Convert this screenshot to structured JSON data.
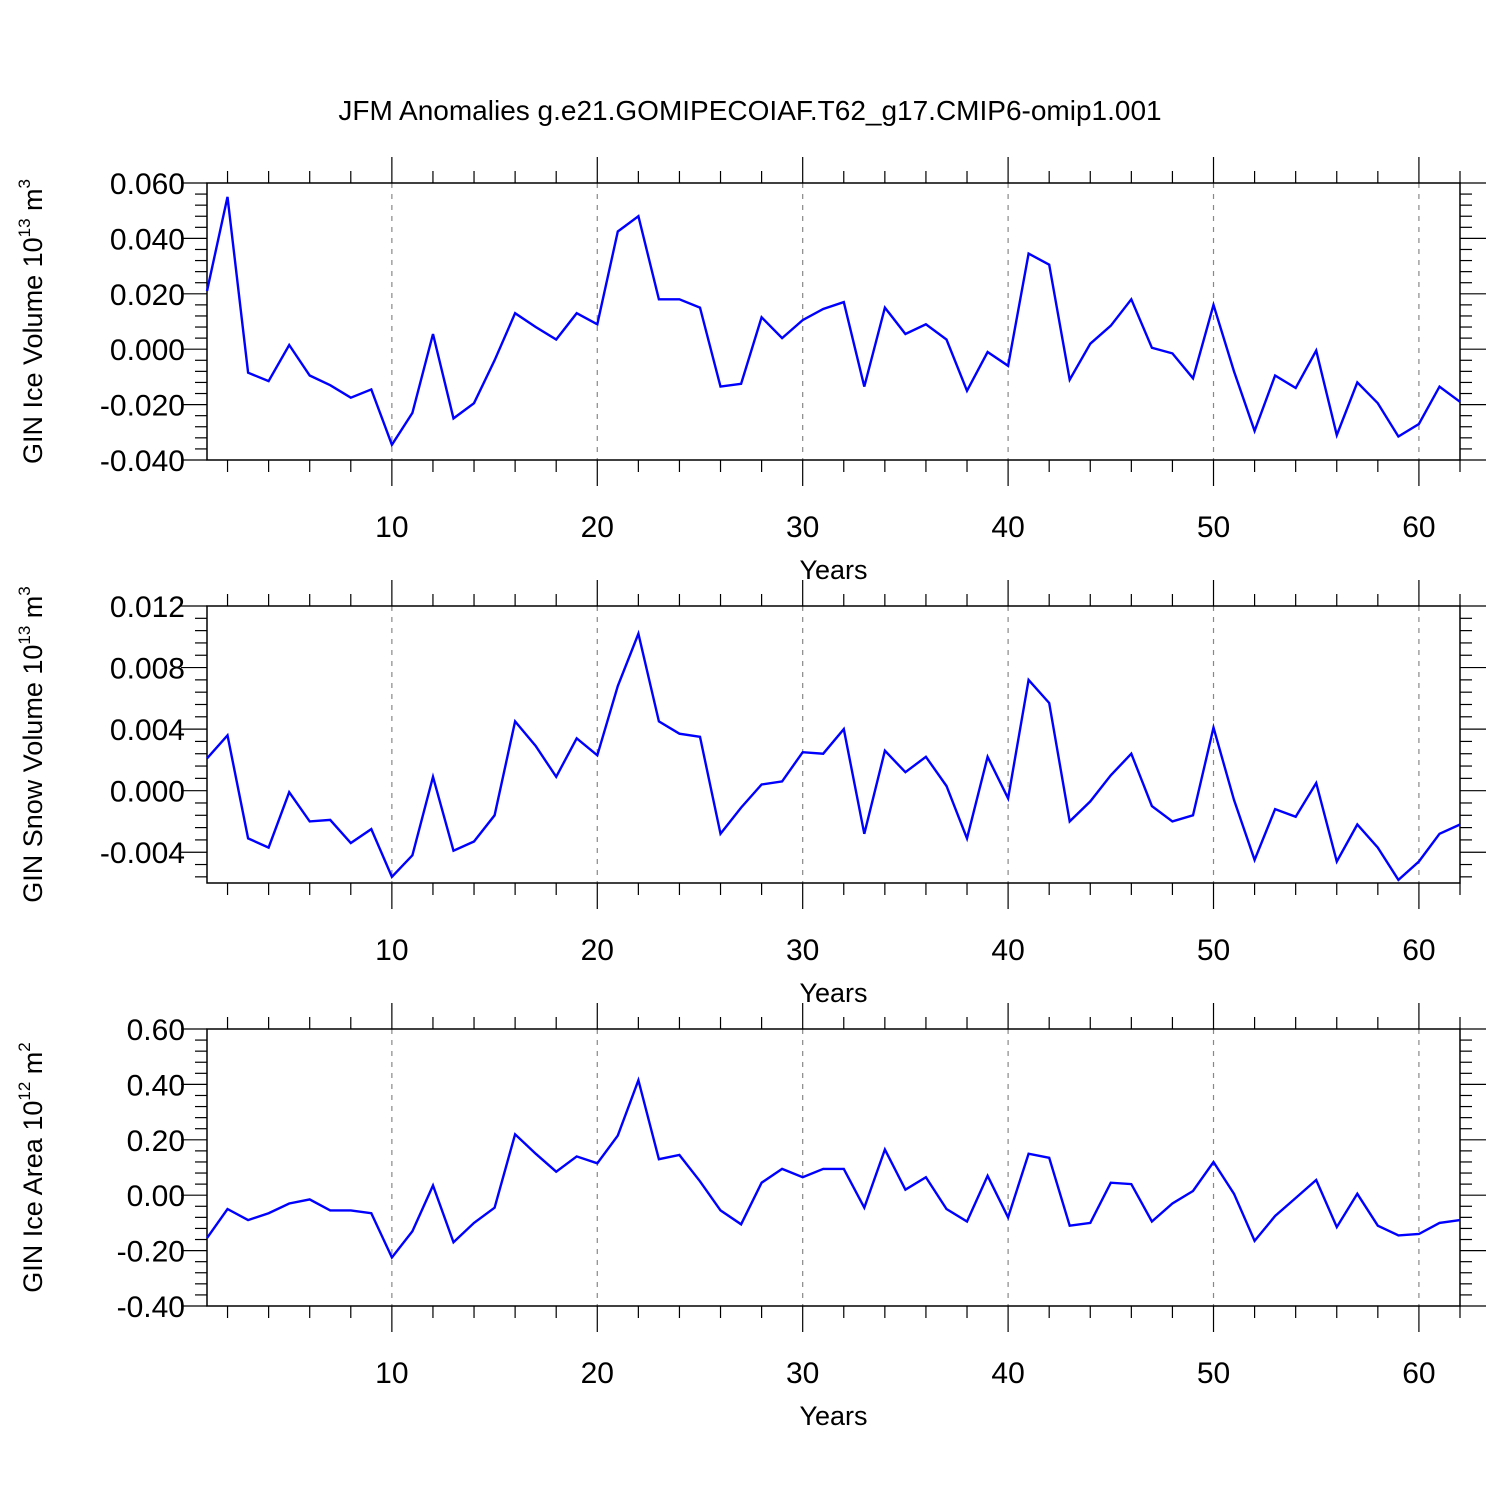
{
  "title": "JFM Anomalies g.e21.GOMIPECOIAF.T62_g17.CMIP6-omip1.001",
  "colors": {
    "line": "#0000ff",
    "grid": "#888888",
    "axes": "#000000"
  },
  "chart_data": [
    {
      "type": "line",
      "xlabel": "Years",
      "ylabel": {
        "text": "GIN Ice Volume 10",
        "sup1": "13",
        "unit": " m",
        "sup2": "3"
      },
      "xlim": [
        1,
        62
      ],
      "ylim": [
        -0.04,
        0.06
      ],
      "xticks": [
        10,
        20,
        30,
        40,
        50,
        60
      ],
      "xtick_labels": [
        "10",
        "20",
        "30",
        "40",
        "50",
        "60"
      ],
      "yticks": [
        -0.04,
        -0.02,
        0.0,
        0.02,
        0.04,
        0.06
      ],
      "ytick_labels": [
        "-0.040",
        "-0.020",
        "0.000",
        "0.020",
        "0.040",
        "0.060"
      ],
      "grid": "dashed vertical at x ticks",
      "series": [
        {
          "x": [
            1,
            2,
            3,
            4,
            5,
            6,
            7,
            8,
            9,
            10,
            11,
            12,
            13,
            14,
            15,
            16,
            17,
            18,
            19,
            20,
            21,
            22,
            23,
            24,
            25,
            26,
            27,
            28,
            29,
            30,
            31,
            32,
            33,
            34,
            35,
            36,
            37,
            38,
            39,
            40,
            41,
            42,
            43,
            44,
            45,
            46,
            47,
            48,
            49,
            50,
            51,
            52,
            53,
            54,
            55,
            56,
            57,
            58,
            59,
            60,
            61,
            62
          ],
          "values": [
            0.021,
            0.055,
            -0.0085,
            -0.0115,
            0.0015,
            -0.0095,
            -0.013,
            -0.0175,
            -0.0145,
            -0.0345,
            -0.023,
            0.0055,
            -0.025,
            -0.0195,
            -0.004,
            0.013,
            0.008,
            0.0035,
            0.013,
            0.009,
            0.0425,
            0.048,
            0.018,
            0.018,
            0.015,
            -0.0135,
            -0.0125,
            0.0115,
            0.004,
            0.0105,
            0.0145,
            0.017,
            -0.0135,
            0.015,
            0.0055,
            0.009,
            0.0035,
            -0.015,
            -0.001,
            -0.006,
            0.0345,
            0.0305,
            -0.011,
            0.002,
            0.0085,
            0.018,
            0.0005,
            -0.0015,
            -0.0105,
            0.016,
            -0.008,
            -0.0295,
            -0.0095,
            -0.014,
            -0.0005,
            -0.031,
            -0.012,
            -0.0195,
            -0.0315,
            -0.027,
            -0.0135,
            -0.019
          ]
        }
      ]
    },
    {
      "type": "line",
      "xlabel": "Years",
      "ylabel": {
        "text": "GIN Snow Volume 10",
        "sup1": "13",
        "unit": " m",
        "sup2": "3"
      },
      "xlim": [
        1,
        62
      ],
      "ylim": [
        -0.006,
        0.012
      ],
      "xticks": [
        10,
        20,
        30,
        40,
        50,
        60
      ],
      "xtick_labels": [
        "10",
        "20",
        "30",
        "40",
        "50",
        "60"
      ],
      "yticks": [
        -0.004,
        0.0,
        0.004,
        0.008,
        0.012
      ],
      "ytick_labels": [
        "-0.004",
        "0.000",
        "0.004",
        "0.008",
        "0.012"
      ],
      "grid": "dashed vertical at x ticks",
      "series": [
        {
          "x": [
            1,
            2,
            3,
            4,
            5,
            6,
            7,
            8,
            9,
            10,
            11,
            12,
            13,
            14,
            15,
            16,
            17,
            18,
            19,
            20,
            21,
            22,
            23,
            24,
            25,
            26,
            27,
            28,
            29,
            30,
            31,
            32,
            33,
            34,
            35,
            36,
            37,
            38,
            39,
            40,
            41,
            42,
            43,
            44,
            45,
            46,
            47,
            48,
            49,
            50,
            51,
            52,
            53,
            54,
            55,
            56,
            57,
            58,
            59,
            60,
            61,
            62
          ],
          "values": [
            0.0021,
            0.0036,
            -0.0031,
            -0.0037,
            -0.0001,
            -0.002,
            -0.0019,
            -0.0034,
            -0.0025,
            -0.0056,
            -0.0042,
            0.0009,
            -0.0039,
            -0.0033,
            -0.0016,
            0.0045,
            0.0029,
            0.0009,
            0.0034,
            0.0023,
            0.0068,
            0.0102,
            0.0045,
            0.0037,
            0.0035,
            -0.0028,
            -0.0011,
            0.0004,
            0.0006,
            0.0025,
            0.0024,
            0.004,
            -0.0028,
            0.0026,
            0.0012,
            0.0022,
            0.0003,
            -0.0031,
            0.0022,
            -0.0005,
            0.0072,
            0.0057,
            -0.002,
            -0.0007,
            0.001,
            0.0024,
            -0.001,
            -0.002,
            -0.0016,
            0.0041,
            -0.0006,
            -0.0045,
            -0.0012,
            -0.0017,
            0.0005,
            -0.0046,
            -0.0022,
            -0.0037,
            -0.0058,
            -0.0046,
            -0.0028,
            -0.0022
          ]
        }
      ]
    },
    {
      "type": "line",
      "xlabel": "Years",
      "ylabel": {
        "text": "GIN Ice Area 10",
        "sup1": "12",
        "unit": " m",
        "sup2": "2"
      },
      "xlim": [
        1,
        62
      ],
      "ylim": [
        -0.4,
        0.6
      ],
      "xticks": [
        10,
        20,
        30,
        40,
        50,
        60
      ],
      "xtick_labels": [
        "10",
        "20",
        "30",
        "40",
        "50",
        "60"
      ],
      "yticks": [
        -0.4,
        -0.2,
        0.0,
        0.2,
        0.4,
        0.6
      ],
      "ytick_labels": [
        "-0.40",
        "-0.20",
        "0.00",
        "0.20",
        "0.40",
        "0.60"
      ],
      "grid": "dashed vertical at x ticks",
      "series": [
        {
          "x": [
            1,
            2,
            3,
            4,
            5,
            6,
            7,
            8,
            9,
            10,
            11,
            12,
            13,
            14,
            15,
            16,
            17,
            18,
            19,
            20,
            21,
            22,
            23,
            24,
            25,
            26,
            27,
            28,
            29,
            30,
            31,
            32,
            33,
            34,
            35,
            36,
            37,
            38,
            39,
            40,
            41,
            42,
            43,
            44,
            45,
            46,
            47,
            48,
            49,
            50,
            51,
            52,
            53,
            54,
            55,
            56,
            57,
            58,
            59,
            60,
            61,
            62
          ],
          "values": [
            -0.155,
            -0.05,
            -0.09,
            -0.065,
            -0.03,
            -0.015,
            -0.055,
            -0.055,
            -0.065,
            -0.225,
            -0.13,
            0.035,
            -0.17,
            -0.1,
            -0.045,
            0.22,
            0.15,
            0.085,
            0.14,
            0.115,
            0.215,
            0.415,
            0.13,
            0.145,
            0.05,
            -0.055,
            -0.105,
            0.045,
            0.095,
            0.065,
            0.095,
            0.095,
            -0.045,
            0.165,
            0.02,
            0.065,
            -0.05,
            -0.095,
            0.07,
            -0.08,
            0.15,
            0.135,
            -0.11,
            -0.1,
            0.045,
            0.04,
            -0.095,
            -0.03,
            0.015,
            0.12,
            0.005,
            -0.165,
            -0.075,
            -0.01,
            0.055,
            -0.115,
            0.005,
            -0.11,
            -0.145,
            -0.14,
            -0.1,
            -0.09
          ]
        }
      ]
    }
  ]
}
